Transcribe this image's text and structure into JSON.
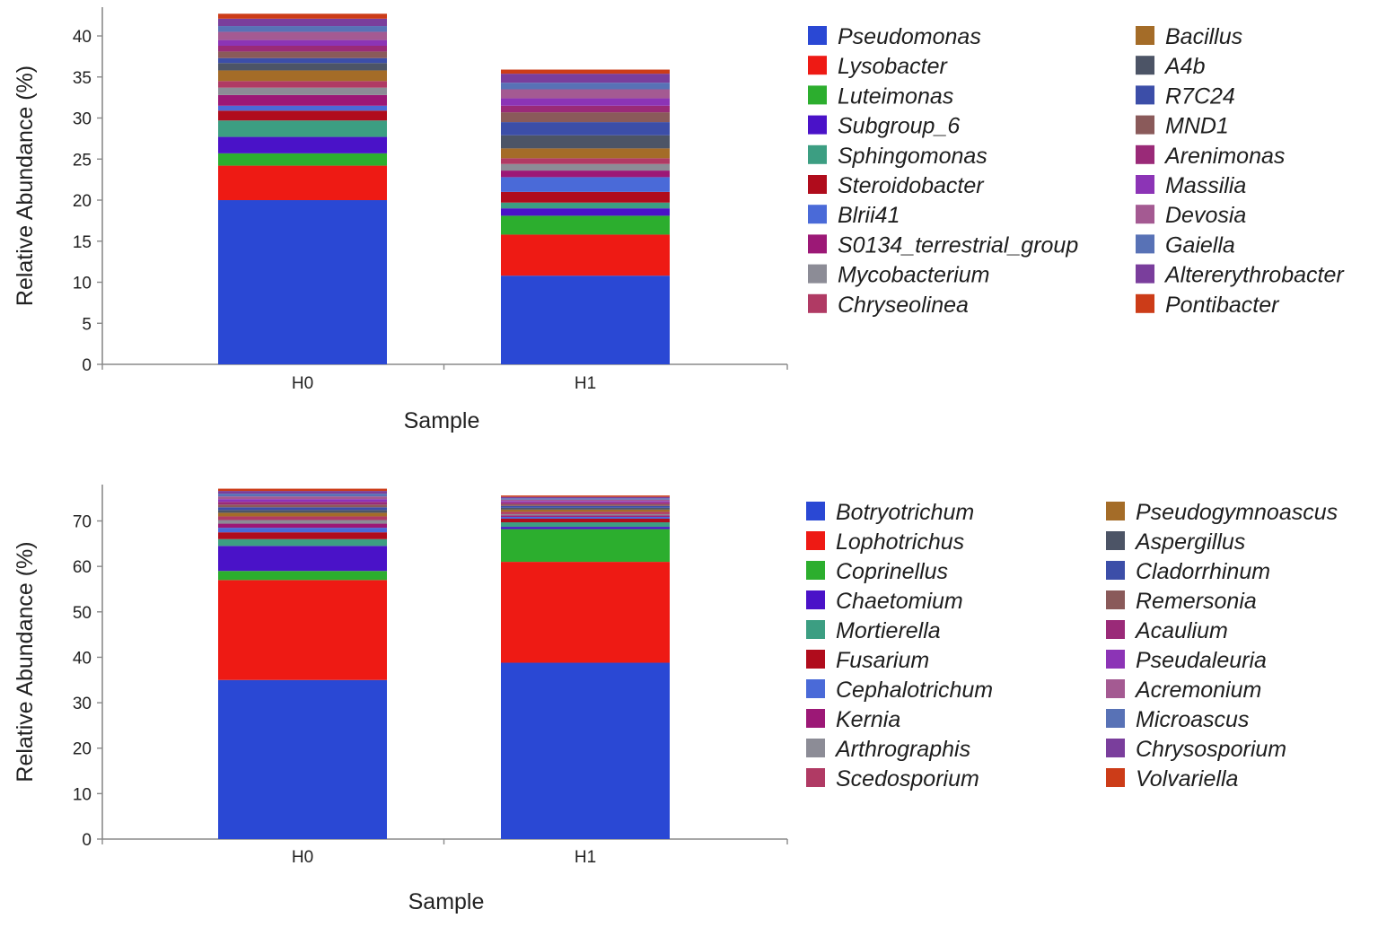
{
  "chart_data": [
    {
      "type": "bar",
      "stacked": true,
      "xlabel": "Sample",
      "ylabel": "Relative Abundance (%)",
      "ylim": [
        0,
        43.5
      ],
      "yticks": [
        0,
        5,
        10,
        15,
        20,
        25,
        30,
        35,
        40
      ],
      "categories": [
        "H0",
        "H1"
      ],
      "legend_position": "right",
      "series": [
        {
          "name": "Pseudomonas",
          "color": "#2a48d4",
          "values": [
            20.0,
            10.8
          ]
        },
        {
          "name": "Lysobacter",
          "color": "#ee1a14",
          "values": [
            4.2,
            5.0
          ]
        },
        {
          "name": "Luteimonas",
          "color": "#2cae2e",
          "values": [
            1.5,
            2.3
          ]
        },
        {
          "name": "Subgroup_6",
          "color": "#4a12c8",
          "values": [
            2.0,
            0.9
          ]
        },
        {
          "name": "Sphingomonas",
          "color": "#3c9e82",
          "values": [
            2.0,
            0.7
          ]
        },
        {
          "name": "Steroidobacter",
          "color": "#b00c1c",
          "values": [
            1.2,
            1.3
          ]
        },
        {
          "name": "Blrii41",
          "color": "#4a6ad8",
          "values": [
            0.6,
            1.8
          ]
        },
        {
          "name": "S0134_terrestrial_group",
          "color": "#9c1876",
          "values": [
            1.3,
            0.8
          ]
        },
        {
          "name": "Mycobacterium",
          "color": "#8c8c96",
          "values": [
            0.9,
            0.8
          ]
        },
        {
          "name": "Chryseolinea",
          "color": "#b03a64",
          "values": [
            0.8,
            0.7
          ]
        },
        {
          "name": "Bacillus",
          "color": "#a46c28",
          "values": [
            1.3,
            1.2
          ]
        },
        {
          "name": "A4b",
          "color": "#4c5466",
          "values": [
            0.9,
            1.6
          ]
        },
        {
          "name": "R7C24",
          "color": "#3c4ea8",
          "values": [
            0.6,
            1.6
          ]
        },
        {
          "name": "MND1",
          "color": "#8a5a5a",
          "values": [
            0.8,
            1.2
          ]
        },
        {
          "name": "Arenimonas",
          "color": "#9a2a78",
          "values": [
            0.7,
            0.8
          ]
        },
        {
          "name": "Massilia",
          "color": "#8c34b6",
          "values": [
            0.7,
            0.9
          ]
        },
        {
          "name": "Devosia",
          "color": "#a45a92",
          "values": [
            1.0,
            1.1
          ]
        },
        {
          "name": "Gaiella",
          "color": "#5872b6",
          "values": [
            0.7,
            0.8
          ]
        },
        {
          "name": "Altererythrobacter",
          "color": "#7a3e9c",
          "values": [
            0.9,
            1.1
          ]
        },
        {
          "name": "Pontibacter",
          "color": "#cc3c18",
          "values": [
            0.6,
            0.5
          ]
        }
      ]
    },
    {
      "type": "bar",
      "stacked": true,
      "xlabel": "Sample",
      "ylabel": "Relative Abundance (%)",
      "ylim": [
        0,
        78
      ],
      "yticks": [
        0,
        10,
        20,
        30,
        40,
        50,
        60,
        70
      ],
      "categories": [
        "H0",
        "H1"
      ],
      "legend_position": "right",
      "series": [
        {
          "name": "Botryotrichum",
          "color": "#2a48d4",
          "values": [
            35.0,
            38.8
          ]
        },
        {
          "name": "Lophotrichus",
          "color": "#ee1a14",
          "values": [
            22.0,
            22.2
          ]
        },
        {
          "name": "Coprinellus",
          "color": "#2cae2e",
          "values": [
            2.0,
            7.2
          ]
        },
        {
          "name": "Chaetomium",
          "color": "#4a12c8",
          "values": [
            5.5,
            0.5
          ]
        },
        {
          "name": "Mortierella",
          "color": "#3c9e82",
          "values": [
            1.5,
            1.0
          ]
        },
        {
          "name": "Fusarium",
          "color": "#b00c1c",
          "values": [
            1.5,
            0.8
          ]
        },
        {
          "name": "Cephalotrichum",
          "color": "#4a6ad8",
          "values": [
            1.0,
            0.4
          ]
        },
        {
          "name": "Kernia",
          "color": "#9c1876",
          "values": [
            0.9,
            0.3
          ]
        },
        {
          "name": "Arthrographis",
          "color": "#8c8c96",
          "values": [
            0.8,
            0.3
          ]
        },
        {
          "name": "Scedosporium",
          "color": "#b03a64",
          "values": [
            0.8,
            0.5
          ]
        },
        {
          "name": "Pseudogymnoascus",
          "color": "#a46c28",
          "values": [
            0.8,
            0.5
          ]
        },
        {
          "name": "Aspergillus",
          "color": "#4c5466",
          "values": [
            0.6,
            0.4
          ]
        },
        {
          "name": "Cladorrhinum",
          "color": "#3c4ea8",
          "values": [
            0.6,
            0.4
          ]
        },
        {
          "name": "Remersonia",
          "color": "#8a5a5a",
          "values": [
            0.6,
            0.4
          ]
        },
        {
          "name": "Acaulium",
          "color": "#9a2a78",
          "values": [
            0.6,
            0.4
          ]
        },
        {
          "name": "Pseudaleuria",
          "color": "#8c34b6",
          "values": [
            0.6,
            0.3
          ]
        },
        {
          "name": "Acremonium",
          "color": "#a45a92",
          "values": [
            0.6,
            0.3
          ]
        },
        {
          "name": "Microascus",
          "color": "#5872b6",
          "values": [
            0.6,
            0.3
          ]
        },
        {
          "name": "Chrysosporium",
          "color": "#7a3e9c",
          "values": [
            0.6,
            0.3
          ]
        },
        {
          "name": "Volvariella",
          "color": "#cc3c18",
          "values": [
            0.5,
            0.3
          ]
        }
      ]
    }
  ]
}
